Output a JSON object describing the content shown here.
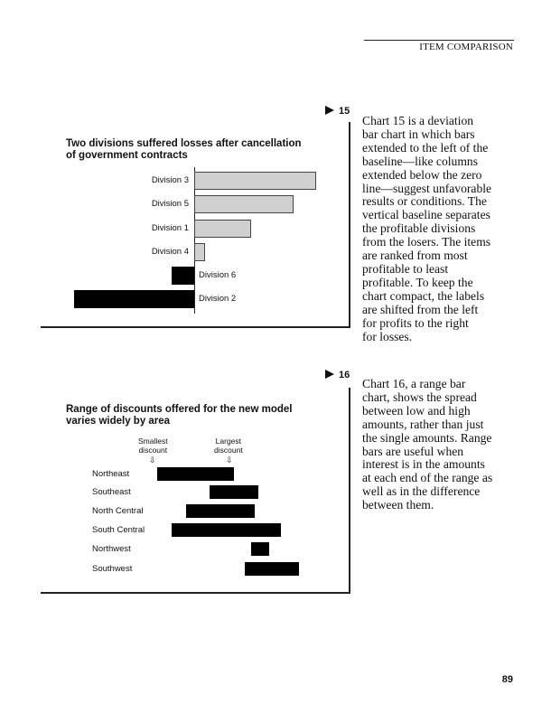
{
  "running_head": "ITEM COMPARISON",
  "page_number": "89",
  "figures": [
    {
      "number": "15",
      "paragraph": [
        "Chart 15 is a deviation",
        "bar chart in which bars",
        "extended to the left of the",
        "baseline—like columns",
        "extended below the zero",
        "line—suggest unfavorable",
        "results or conditions. The",
        "vertical baseline separates",
        "the profitable divisions",
        "from the losers. The items",
        "are ranked from most",
        "profitable to least",
        "profitable. To keep the",
        "chart compact, the labels",
        "are shifted from the left",
        "for profits to the right",
        "for losses."
      ]
    },
    {
      "number": "16",
      "paragraph": [
        "Chart 16, a range bar",
        "chart, shows the spread",
        "between low and high",
        "amounts, rather than just",
        "the single amounts. Range",
        "bars are useful when",
        "interest is in the amounts",
        "at each end of the range as",
        "well as in the difference",
        "between them."
      ]
    }
  ],
  "chart_data": [
    {
      "type": "bar",
      "orientation": "horizontal",
      "subtype": "deviation",
      "title": "Two divisions suffered losses after cancellation of government contracts",
      "title_lines": [
        "Two divisions suffered losses after cancellation",
        "of government contracts"
      ],
      "categories": [
        "Division 3",
        "Division 5",
        "Division 1",
        "Division 4",
        "Division 6",
        "Division 2"
      ],
      "values": [
        135,
        110,
        63,
        12,
        -25,
        -133
      ],
      "colors": {
        "positive": "#d0d0d0",
        "negative": "#000000"
      },
      "grid": false,
      "legend": "none"
    },
    {
      "type": "bar",
      "orientation": "horizontal",
      "subtype": "range",
      "title": "Range of discounts offered for the new model varies widely by area",
      "title_lines": [
        "Range of discounts offered for the new model",
        "varies widely by area"
      ],
      "annotations": {
        "low": [
          "Smallest",
          "discount"
        ],
        "high": [
          "Largest",
          "discount"
        ]
      },
      "categories": [
        "Northeast",
        "Southeast",
        "North Central",
        "South Central",
        "Northwest",
        "Southwest"
      ],
      "ranges": [
        [
          24,
          109
        ],
        [
          82,
          136
        ],
        [
          56,
          132
        ],
        [
          40,
          161
        ],
        [
          128,
          148
        ],
        [
          121,
          181
        ]
      ],
      "colors": {
        "bar": "#000000"
      },
      "grid": false,
      "legend": "none"
    }
  ]
}
